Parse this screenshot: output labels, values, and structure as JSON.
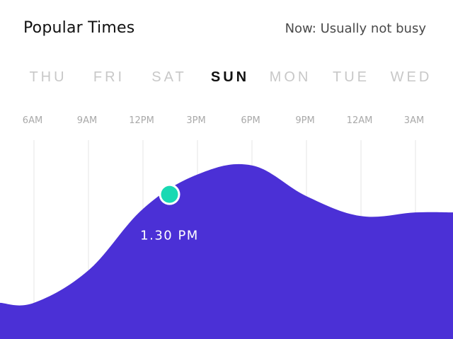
{
  "header": {
    "title": "Popular Times",
    "status": "Now: Usually not busy"
  },
  "days": [
    {
      "label": "THU",
      "active": false
    },
    {
      "label": "FRI",
      "active": false
    },
    {
      "label": "SAT",
      "active": false
    },
    {
      "label": "SUN",
      "active": true
    },
    {
      "label": "MON",
      "active": false
    },
    {
      "label": "TUE",
      "active": false
    },
    {
      "label": "WED",
      "active": false
    }
  ],
  "colors": {
    "fill": "#4b30d6",
    "marker": "#19d9b3",
    "gridline": "#e6e6e6",
    "label": "#a9a9a9"
  },
  "chart_data": {
    "type": "area",
    "x": [
      "6AM",
      "9AM",
      "12PM",
      "3PM",
      "6PM",
      "9PM",
      "12AM",
      "3AM"
    ],
    "values": [
      20,
      38,
      72,
      91,
      96,
      79,
      68,
      70
    ],
    "ylim": [
      0,
      110
    ],
    "grid": true,
    "marker": {
      "label": "1.30 PM"
    }
  }
}
